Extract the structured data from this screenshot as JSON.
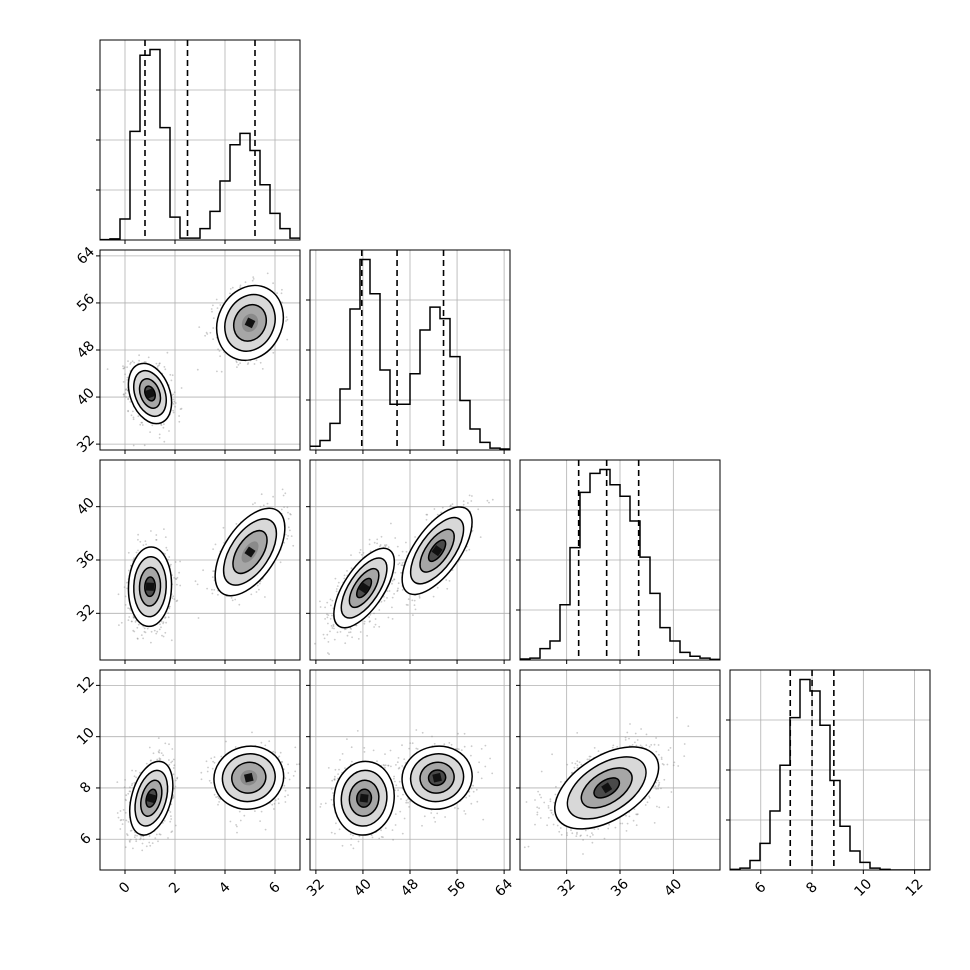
{
  "chart_data": {
    "type": "corner",
    "dimensions": [
      {
        "range": [
          -1.0,
          7.0
        ],
        "ticks": [
          0,
          2,
          4,
          6
        ]
      },
      {
        "range": [
          31.0,
          65.0
        ],
        "ticks": [
          32,
          40,
          48,
          56,
          64
        ]
      },
      {
        "range": [
          28.5,
          43.5
        ],
        "ticks": [
          32,
          36,
          40
        ]
      },
      {
        "range": [
          4.8,
          12.6
        ],
        "ticks": [
          6,
          8,
          10,
          12
        ]
      }
    ],
    "diagonal": [
      {
        "bin_edges": [
          -1.0,
          -0.6,
          -0.2,
          0.2,
          0.6,
          1.0,
          1.4,
          1.8,
          2.2,
          2.6,
          3.0,
          3.4,
          3.8,
          4.2,
          4.6,
          5.0,
          5.4,
          5.8,
          6.2,
          6.6,
          7.0
        ],
        "counts": [
          0.2,
          0.6,
          11,
          57,
          97,
          100,
          59,
          12,
          1,
          1,
          6,
          15,
          31,
          50,
          56,
          47,
          29,
          14,
          6,
          1
        ],
        "quantiles": [
          0.8,
          2.5,
          5.2
        ]
      },
      {
        "bin_edges": [
          31.0,
          32.7,
          34.4,
          36.1,
          37.8,
          39.5,
          41.2,
          42.9,
          44.6,
          46.3,
          48.0,
          49.7,
          51.4,
          53.1,
          54.8,
          56.5,
          58.2,
          59.9,
          61.6,
          63.3,
          65.0
        ],
        "counts": [
          2,
          5,
          14,
          32,
          74,
          100,
          82,
          42,
          24,
          24,
          40,
          63,
          75,
          69,
          49,
          26,
          11,
          4,
          1,
          0.5
        ],
        "quantiles": [
          39.8,
          45.8,
          53.7
        ]
      },
      {
        "bin_edges": [
          28.5,
          29.25,
          30.0,
          30.75,
          31.5,
          32.25,
          33.0,
          33.75,
          34.5,
          35.25,
          36.0,
          36.75,
          37.5,
          38.25,
          39.0,
          39.75,
          40.5,
          41.25,
          42.0,
          42.75,
          43.5
        ],
        "counts": [
          0.5,
          1,
          6,
          10,
          29,
          59,
          88,
          98,
          100,
          92,
          86,
          73,
          54,
          35,
          17,
          10,
          4,
          2,
          1,
          0.3
        ],
        "quantiles": [
          32.9,
          35.0,
          37.4
        ]
      },
      {
        "bin_edges": [
          4.8,
          5.19,
          5.58,
          5.97,
          6.36,
          6.75,
          7.14,
          7.53,
          7.92,
          8.31,
          8.7,
          9.09,
          9.48,
          9.87,
          10.26,
          10.65,
          11.04,
          11.43,
          11.82,
          12.21,
          12.6
        ],
        "counts": [
          0.3,
          1,
          5,
          14,
          31,
          55,
          80,
          100,
          94,
          76,
          47,
          23,
          10,
          4,
          1,
          0.3,
          0,
          0,
          0,
          0
        ],
        "quantiles": [
          7.15,
          8.0,
          8.85
        ]
      }
    ],
    "pairs": [
      {
        "x": 0,
        "y": 1,
        "modes": [
          {
            "mx": 1.0,
            "my": 40.6,
            "sx": 0.42,
            "sy": 2.5,
            "r": -0.3,
            "w": 1.0
          },
          {
            "mx": 5.0,
            "my": 52.6,
            "sx": 0.65,
            "sy": 3.1,
            "r": 0.15,
            "w": 0.55
          }
        ]
      },
      {
        "x": 0,
        "y": 2,
        "modes": [
          {
            "mx": 1.0,
            "my": 34.0,
            "sx": 0.42,
            "sy": 1.45,
            "r": 0.05,
            "w": 1.0
          },
          {
            "mx": 5.0,
            "my": 36.6,
            "sx": 0.68,
            "sy": 1.6,
            "r": 0.55,
            "w": 0.55
          }
        ]
      },
      {
        "x": 1,
        "y": 2,
        "modes": [
          {
            "mx": 40.2,
            "my": 33.9,
            "sx": 2.5,
            "sy": 1.45,
            "r": 0.65,
            "w": 1.0
          },
          {
            "mx": 52.6,
            "my": 36.7,
            "sx": 2.9,
            "sy": 1.6,
            "r": 0.65,
            "w": 0.8
          }
        ]
      },
      {
        "x": 0,
        "y": 3,
        "modes": [
          {
            "mx": 1.05,
            "my": 7.6,
            "sx": 0.42,
            "sy": 0.7,
            "r": 0.35,
            "w": 1.0
          },
          {
            "mx": 4.95,
            "my": 8.4,
            "sx": 0.68,
            "sy": 0.6,
            "r": 0.05,
            "w": 0.55
          }
        ]
      },
      {
        "x": 1,
        "y": 3,
        "modes": [
          {
            "mx": 40.2,
            "my": 7.6,
            "sx": 2.5,
            "sy": 0.7,
            "r": 0.05,
            "w": 1.0
          },
          {
            "mx": 52.6,
            "my": 8.4,
            "sx": 2.9,
            "sy": 0.6,
            "r": 0.05,
            "w": 0.8
          }
        ]
      },
      {
        "x": 2,
        "y": 3,
        "modes": [
          {
            "mx": 35.0,
            "my": 8.0,
            "sx": 1.9,
            "sy": 0.78,
            "r": 0.5,
            "w": 1.0
          }
        ]
      }
    ]
  }
}
